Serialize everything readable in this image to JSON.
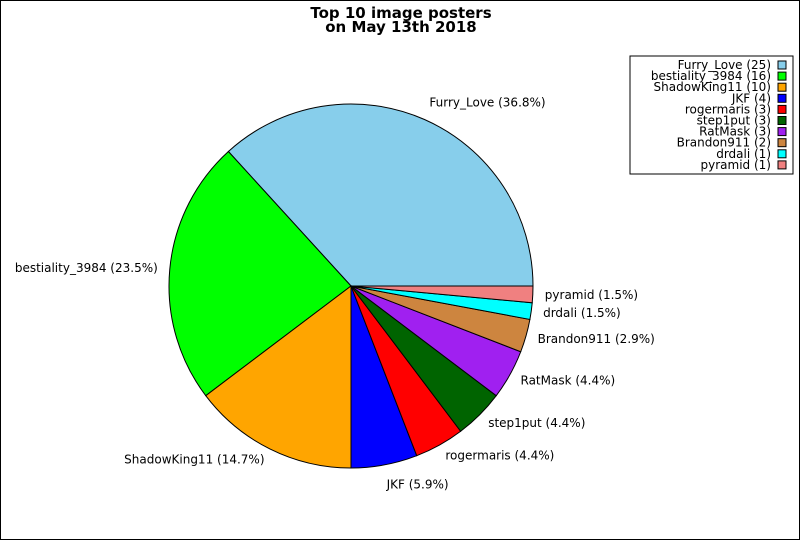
{
  "chart_data": {
    "type": "pie",
    "title": "Top 10 image posters",
    "subtitle": "on May 13th 2018",
    "slices": [
      {
        "name": "Furry_Love",
        "value": 25,
        "percent": "36.8%",
        "color": "#87ceeb"
      },
      {
        "name": "bestiality_3984",
        "value": 16,
        "percent": "23.5%",
        "color": "#00ff00"
      },
      {
        "name": "ShadowKing11",
        "value": 10,
        "percent": "14.7%",
        "color": "#ffa500"
      },
      {
        "name": "JKF",
        "value": 4,
        "percent": "5.9%",
        "color": "#0000ff"
      },
      {
        "name": "rogermaris",
        "value": 3,
        "percent": "4.4%",
        "color": "#ff0000"
      },
      {
        "name": "step1put",
        "value": 3,
        "percent": "4.4%",
        "color": "#006400"
      },
      {
        "name": "RatMask",
        "value": 3,
        "percent": "4.4%",
        "color": "#a020f0"
      },
      {
        "name": "Brandon911",
        "value": 2,
        "percent": "2.9%",
        "color": "#cd853f"
      },
      {
        "name": "drdali",
        "value": 1,
        "percent": "1.5%",
        "color": "#00ffff"
      },
      {
        "name": "pyramid",
        "value": 1,
        "percent": "1.5%",
        "color": "#f08080"
      }
    ],
    "legend_placement": "top-right",
    "direction": "counterclockwise",
    "start_angle_deg": 0
  }
}
